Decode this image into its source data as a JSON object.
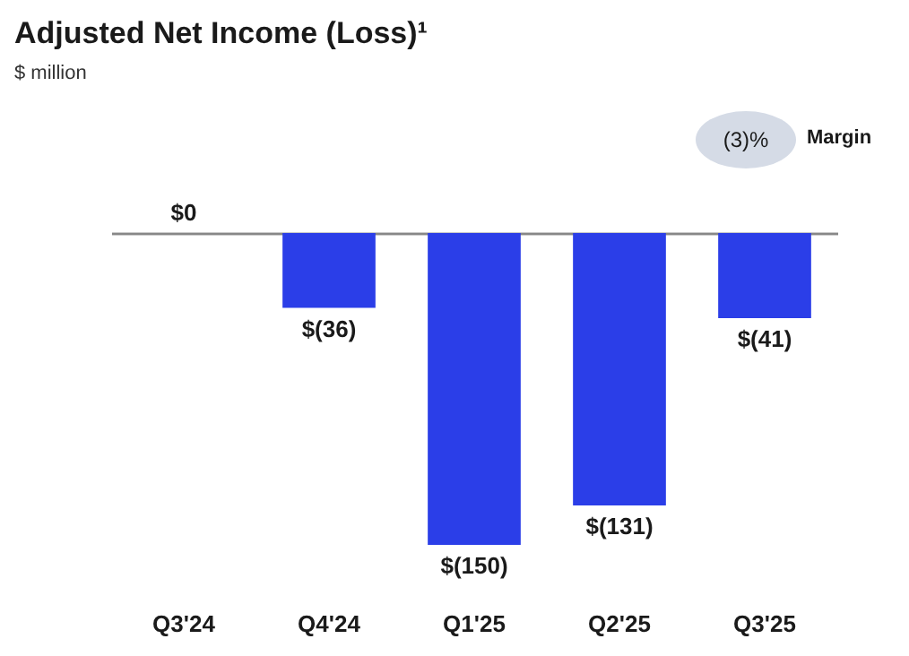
{
  "chart_data": {
    "type": "bar",
    "title": "Adjusted Net Income (Loss)¹",
    "subtitle": "$ million",
    "categories": [
      "Q3'24",
      "Q4'24",
      "Q1'25",
      "Q2'25",
      "Q3'25"
    ],
    "values": [
      0,
      -36,
      -150,
      -131,
      -41
    ],
    "value_labels": [
      "$0",
      "$(36)",
      "$(150)",
      "$(131)",
      "$(41)"
    ],
    "color": "#2b3ee8",
    "annotations": [
      "(3)%",
      "Margin"
    ]
  }
}
